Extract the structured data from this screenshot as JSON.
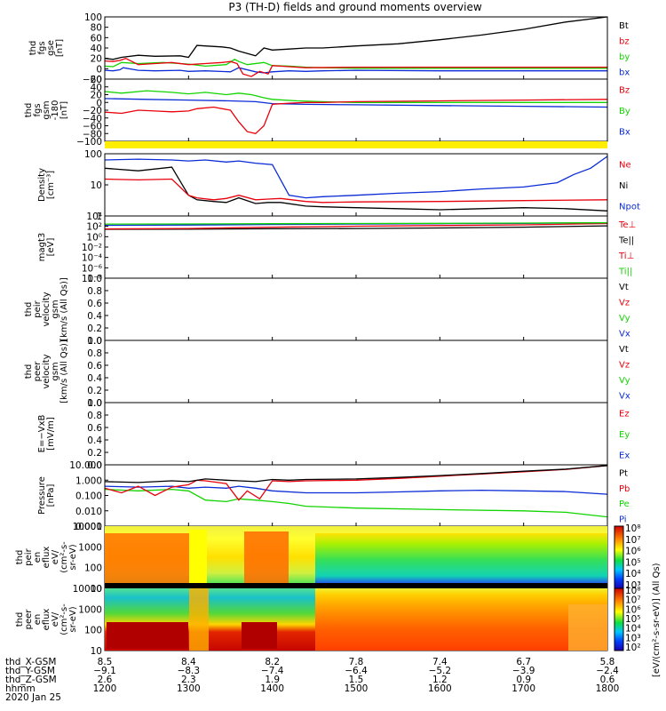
{
  "title": "P3 (TH-D) fields and ground moments overview",
  "colors": {
    "black": "#000000",
    "red": "#e8000b",
    "green": "#12d400",
    "blue": "#0a2bd6",
    "yellow": "#ffee00"
  },
  "chart_data": [
    {
      "id": "fgs_gse",
      "type": "line",
      "ylabel": [
        "thd",
        "fgs",
        "gse",
        "[nT]"
      ],
      "yticks": [
        "100",
        "80",
        "60",
        "40",
        "20",
        "0",
        "−20"
      ],
      "ylim": [
        -20,
        100
      ],
      "legend": [
        {
          "label": "Bt",
          "color": "#000000"
        },
        {
          "label": "bz",
          "color": "#e8000b"
        },
        {
          "label": "by",
          "color": "#12d400"
        },
        {
          "label": "bx",
          "color": "#0a2bd6"
        }
      ],
      "series": [
        {
          "color": "#0a2bd6",
          "x": [
            1200,
            1210,
            1218,
            1222,
            1240,
            1260,
            1290,
            1300,
            1320,
            1350,
            1360,
            1380,
            1390,
            1400,
            1420,
            1440,
            1460,
            1500,
            1600,
            1700,
            1800
          ],
          "y": [
            -3,
            -4,
            -2,
            2,
            -3,
            -4,
            -3,
            -5,
            -4,
            -6,
            2,
            -6,
            -8,
            -6,
            -4,
            -5,
            -4,
            -3,
            -4,
            -4,
            -4
          ]
        },
        {
          "color": "#12d400",
          "x": [
            1200,
            1210,
            1220,
            1240,
            1270,
            1300,
            1320,
            1345,
            1355,
            1360,
            1370,
            1390,
            1400,
            1420,
            1440,
            1460,
            1500,
            1600,
            1700,
            1800
          ],
          "y": [
            5,
            4,
            12,
            10,
            12,
            9,
            5,
            8,
            18,
            14,
            8,
            12,
            6,
            5,
            3,
            2,
            1,
            1,
            1,
            1
          ]
        },
        {
          "color": "#e8000b",
          "x": [
            1200,
            1210,
            1218,
            1225,
            1240,
            1260,
            1280,
            1300,
            1320,
            1340,
            1350,
            1358,
            1365,
            1375,
            1385,
            1395,
            1400,
            1420,
            1440,
            1500,
            1600,
            1700,
            1800
          ],
          "y": [
            15,
            14,
            16,
            20,
            8,
            10,
            12,
            8,
            10,
            12,
            14,
            10,
            -10,
            -15,
            -5,
            -10,
            6,
            4,
            2,
            3,
            3,
            3,
            3
          ]
        },
        {
          "color": "#000000",
          "x": [
            1200,
            1210,
            1220,
            1240,
            1260,
            1290,
            1300,
            1310,
            1320,
            1340,
            1350,
            1360,
            1380,
            1390,
            1400,
            1420,
            1440,
            1460,
            1500,
            1550,
            1600,
            1650,
            1700,
            1750,
            1800
          ],
          "y": [
            20,
            18,
            22,
            26,
            24,
            25,
            22,
            45,
            44,
            42,
            40,
            34,
            25,
            40,
            36,
            38,
            40,
            40,
            44,
            48,
            56,
            65,
            76,
            90,
            106
          ]
        }
      ]
    },
    {
      "id": "fgs_gsm",
      "type": "line",
      "ylabel": [
        "thd",
        "fgs",
        "gsm",
        "-180",
        "[nT]"
      ],
      "yticks": [
        "60",
        "40",
        "20",
        "0",
        "−20",
        "−40",
        "−60",
        "−80",
        "−100"
      ],
      "ylim": [
        -100,
        60
      ],
      "legend": [
        {
          "label": "Bz",
          "color": "#e8000b"
        },
        {
          "label": "By",
          "color": "#12d400"
        },
        {
          "label": "Bx",
          "color": "#0a2bd6"
        }
      ],
      "series": [
        {
          "color": "#0a2bd6",
          "x": [
            1200,
            1250,
            1300,
            1350,
            1380,
            1400,
            1440,
            1500,
            1600,
            1700,
            1800
          ],
          "y": [
            10,
            8,
            6,
            4,
            2,
            -3,
            -5,
            -6,
            -8,
            -10,
            -12
          ]
        },
        {
          "color": "#12d400",
          "x": [
            1200,
            1220,
            1250,
            1280,
            1300,
            1320,
            1345,
            1360,
            1375,
            1390,
            1400,
            1430,
            1460,
            1500,
            1600,
            1700,
            1800
          ],
          "y": [
            28,
            24,
            30,
            26,
            22,
            26,
            20,
            24,
            20,
            12,
            8,
            4,
            2,
            0,
            0,
            0,
            0
          ]
        },
        {
          "color": "#e8000b",
          "x": [
            1200,
            1220,
            1240,
            1260,
            1280,
            1300,
            1310,
            1330,
            1350,
            1360,
            1370,
            1380,
            1390,
            1400,
            1420,
            1440,
            1460,
            1500,
            1600,
            1700,
            1800
          ],
          "y": [
            -25,
            -28,
            -20,
            -22,
            -24,
            -22,
            -16,
            -12,
            -20,
            -50,
            -75,
            -80,
            -60,
            -5,
            -2,
            0,
            0,
            2,
            4,
            6,
            8
          ]
        }
      ]
    },
    {
      "id": "density",
      "type": "line",
      "scale": "log",
      "ylabel": [
        "Density",
        "[cm⁻³]"
      ],
      "yticks": [
        "100",
        "10",
        "1"
      ],
      "ylim": [
        0.2,
        200
      ],
      "legend": [
        {
          "label": "Ne",
          "color": "#e8000b"
        },
        {
          "label": "Ni",
          "color": "#000000"
        },
        {
          "label": "Npot",
          "color": "#0a2bd6"
        }
      ],
      "series": [
        {
          "color": "#0a2bd6",
          "x": [
            1200,
            1240,
            1280,
            1300,
            1320,
            1345,
            1360,
            1380,
            1400,
            1420,
            1440,
            1460,
            1500,
            1550,
            1600,
            1650,
            1700,
            1740,
            1760,
            1780,
            1800
          ],
          "y": [
            100,
            110,
            100,
            90,
            100,
            80,
            90,
            70,
            60,
            2,
            1.5,
            1.7,
            2,
            2.5,
            3,
            4,
            5,
            8,
            20,
            40,
            150
          ]
        },
        {
          "color": "#000000",
          "x": [
            1200,
            1240,
            1280,
            1300,
            1310,
            1330,
            1345,
            1360,
            1380,
            1395,
            1410,
            1440,
            1460,
            1500,
            1550,
            1600,
            1650,
            1700,
            1750,
            1800
          ],
          "y": [
            40,
            30,
            45,
            2,
            1.2,
            1,
            0.9,
            1.5,
            0.8,
            0.9,
            0.9,
            0.6,
            0.55,
            0.5,
            0.45,
            0.4,
            0.45,
            0.5,
            0.45,
            0.35
          ]
        },
        {
          "color": "#e8000b",
          "x": [
            1200,
            1240,
            1280,
            1300,
            1310,
            1330,
            1345,
            1360,
            1380,
            1395,
            1410,
            1440,
            1460,
            1500,
            1600,
            1700,
            1800
          ],
          "y": [
            12,
            11,
            12,
            2,
            1.5,
            1.2,
            1.4,
            2,
            1.2,
            1.3,
            1.4,
            1,
            0.9,
            0.95,
            1,
            1.1,
            1.2
          ]
        }
      ]
    },
    {
      "id": "temperature",
      "type": "line",
      "scale": "log",
      "ylabel": [
        "magt3",
        "[eV]"
      ],
      "yticks": [
        "10⁴",
        "10²",
        "10⁰",
        "10⁻²",
        "10⁻⁴",
        "10⁻⁶",
        "10⁻⁸"
      ],
      "ylim": [
        1e-09,
        100000.0
      ],
      "legend": [
        {
          "label": "Te⊥",
          "color": "#e8000b"
        },
        {
          "label": "Te||",
          "color": "#000000"
        },
        {
          "label": "Ti⊥",
          "color": "#e8000b"
        },
        {
          "label": "Ti||",
          "color": "#12d400"
        }
      ],
      "series": [
        {
          "color": "#000000",
          "x": [
            1200,
            1300,
            1400,
            1500,
            1600,
            1700,
            1800
          ],
          "y": [
            100,
            110,
            130,
            150,
            200,
            300,
            600
          ]
        },
        {
          "color": "#e8000b",
          "x": [
            1200,
            1300,
            1400,
            1500,
            1600,
            1700,
            1800
          ],
          "y": [
            120,
            150,
            300,
            500,
            700,
            1000,
            2000
          ]
        },
        {
          "color": "#0a2bd6",
          "x": [
            1200,
            1300,
            1400,
            1500,
            1600,
            1700,
            1800
          ],
          "y": [
            800,
            900,
            1200,
            1500,
            1800,
            2200,
            3000
          ]
        },
        {
          "color": "#12d400",
          "x": [
            1200,
            1300,
            1400,
            1500,
            1600,
            1700,
            1800
          ],
          "y": [
            1500,
            1600,
            1800,
            2000,
            2200,
            2500,
            3000
          ]
        }
      ]
    },
    {
      "id": "peir_velocity",
      "type": "line",
      "ylabel": [
        "thd",
        "peir",
        "velocity",
        "gsm",
        "[km/s (All Qs)]"
      ],
      "yticks": [
        "1.0",
        "0.8",
        "0.6",
        "0.4",
        "0.2",
        "0.0"
      ],
      "ylim": [
        0,
        1
      ],
      "legend": [
        {
          "label": "Vt",
          "color": "#000000"
        },
        {
          "label": "Vz",
          "color": "#e8000b"
        },
        {
          "label": "Vy",
          "color": "#12d400"
        },
        {
          "label": "Vx",
          "color": "#0a2bd6"
        }
      ],
      "series": []
    },
    {
      "id": "peer_velocity",
      "type": "line",
      "ylabel": [
        "thd",
        "peer",
        "velocity",
        "gsm",
        "[km/s (All Qs)]"
      ],
      "yticks": [
        "1.0",
        "0.8",
        "0.6",
        "0.4",
        "0.2",
        "0.0"
      ],
      "ylim": [
        0,
        1
      ],
      "legend": [
        {
          "label": "Vt",
          "color": "#000000"
        },
        {
          "label": "Vz",
          "color": "#e8000b"
        },
        {
          "label": "Vy",
          "color": "#12d400"
        },
        {
          "label": "Vx",
          "color": "#0a2bd6"
        }
      ],
      "series": []
    },
    {
      "id": "efield",
      "type": "line",
      "ylabel": [
        "E=−VxB",
        "[mV/m]"
      ],
      "yticks": [
        "1.0",
        "0.8",
        "0.6",
        "0.4",
        "0.2",
        "0.0"
      ],
      "ylim": [
        0,
        1
      ],
      "legend": [
        {
          "label": "Ez",
          "color": "#e8000b"
        },
        {
          "label": "Ey",
          "color": "#12d400"
        },
        {
          "label": "Ex",
          "color": "#0a2bd6"
        }
      ],
      "series": []
    },
    {
      "id": "pressure",
      "type": "line",
      "scale": "log",
      "ylabel": [
        "Pressure",
        "[nPa]"
      ],
      "yticks": [
        "10.000",
        "1.000",
        "0.100",
        "0.010",
        "0.001"
      ],
      "ylim": [
        0.001,
        10
      ],
      "legend": [
        {
          "label": "Pt",
          "color": "#000000"
        },
        {
          "label": "Pb",
          "color": "#e8000b"
        },
        {
          "label": "Pe",
          "color": "#12d400"
        },
        {
          "label": "Pi",
          "color": "#0a2bd6"
        }
      ],
      "series": [
        {
          "color": "#12d400",
          "x": [
            1200,
            1240,
            1280,
            1300,
            1320,
            1345,
            1360,
            1380,
            1400,
            1420,
            1440,
            1500,
            1600,
            1700,
            1750,
            1800
          ],
          "y": [
            0.25,
            0.2,
            0.25,
            0.2,
            0.05,
            0.04,
            0.06,
            0.05,
            0.04,
            0.03,
            0.02,
            0.015,
            0.012,
            0.01,
            0.008,
            0.004
          ]
        },
        {
          "color": "#0a2bd6",
          "x": [
            1200,
            1240,
            1280,
            1300,
            1320,
            1345,
            1360,
            1380,
            1400,
            1440,
            1500,
            1550,
            1600,
            1650,
            1700,
            1750,
            1800
          ],
          "y": [
            0.4,
            0.35,
            0.4,
            0.3,
            0.35,
            0.3,
            0.4,
            0.3,
            0.2,
            0.15,
            0.15,
            0.17,
            0.2,
            0.22,
            0.2,
            0.18,
            0.12
          ]
        },
        {
          "color": "#e8000b",
          "x": [
            1200,
            1220,
            1240,
            1260,
            1280,
            1300,
            1310,
            1320,
            1345,
            1360,
            1370,
            1385,
            1400,
            1420,
            1440,
            1500,
            1550,
            1600,
            1650,
            1700,
            1750,
            1800
          ],
          "y": [
            0.3,
            0.15,
            0.4,
            0.1,
            0.35,
            0.5,
            1,
            0.9,
            0.6,
            0.05,
            0.2,
            0.06,
            0.9,
            0.8,
            0.9,
            1,
            1.3,
            1.8,
            2.5,
            3.5,
            5,
            9
          ]
        },
        {
          "color": "#000000",
          "x": [
            1200,
            1240,
            1280,
            1300,
            1320,
            1345,
            1360,
            1380,
            1400,
            1420,
            1440,
            1500,
            1550,
            1600,
            1650,
            1700,
            1750,
            1800
          ],
          "y": [
            0.8,
            0.7,
            0.9,
            0.8,
            1.2,
            1,
            0.9,
            0.8,
            1.1,
            1,
            1.1,
            1.2,
            1.5,
            2,
            2.7,
            3.8,
            5.2,
            9
          ]
        }
      ]
    },
    {
      "id": "peir_eflux",
      "type": "heatmap",
      "ylabel": [
        "thd",
        "peir",
        "en",
        "eflux",
        "eV/",
        "(cm²-s-",
        "sr-eV)"
      ],
      "yticks": [
        "10000",
        "1000",
        "100",
        "10"
      ],
      "colorbar_ticks": [
        "10⁸",
        "10⁷",
        "10⁶",
        "10⁵",
        "10⁴",
        "10³"
      ]
    },
    {
      "id": "peer_eflux",
      "type": "heatmap",
      "ylabel": [
        "thd",
        "peer",
        "en",
        "eflux",
        "eV/",
        "(cm²-s-",
        "sr-eV)"
      ],
      "yticks": [
        "10000",
        "1000",
        "100",
        "10"
      ],
      "colorbar_ticks": [
        "10⁸",
        "10⁷",
        "10⁶",
        "10⁵",
        "10⁴",
        "10³",
        "10²"
      ]
    }
  ],
  "colorbar_label": "[eV/(cm²-s-sr-eV)] (All Qs)",
  "ephemeris": {
    "row_labels": [
      "thd_X-GSM",
      "thd_Y-GSM",
      "thd_Z-GSM",
      "hhmm"
    ],
    "date": "2020 Jan 25",
    "x_times": [
      1200,
      1300,
      1400,
      1500,
      1600,
      1700,
      1800
    ],
    "columns": [
      [
        "8.5",
        "−9.1",
        "2.6",
        "1200"
      ],
      [
        "8.4",
        "−8.3",
        "2.3",
        "1300"
      ],
      [
        "8.2",
        "−7.4",
        "1.9",
        "1400"
      ],
      [
        "7.8",
        "−6.4",
        "1.5",
        "1500"
      ],
      [
        "7.4",
        "−5.2",
        "1.2",
        "1600"
      ],
      [
        "6.7",
        "−3.9",
        "0.9",
        "1700"
      ],
      [
        "5.8",
        "−2.4",
        "0.6",
        "1800"
      ]
    ]
  }
}
